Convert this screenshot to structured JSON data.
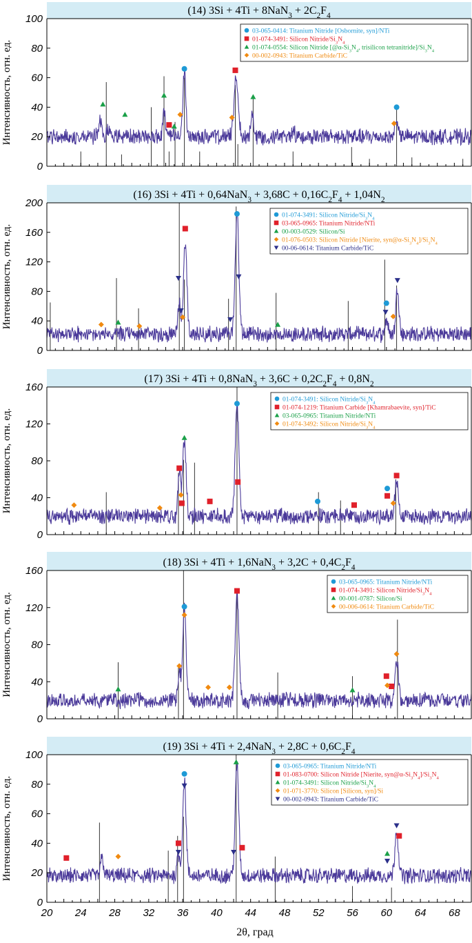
{
  "figure": {
    "xlabel": "2θ, град",
    "ylabel": "Интенсивность, отн. ед.",
    "xticks": [
      20,
      24,
      28,
      32,
      36,
      40,
      44,
      48,
      52,
      56,
      60,
      64,
      68
    ],
    "xlim": [
      20,
      70
    ],
    "line_color": "#4b3a9a",
    "title_bg": "#d4ecf5"
  },
  "chart_data": [
    {
      "type": "line",
      "title": "(14) 3Si + 4Ti + 8NaN3 + 2C2F4",
      "ylim": [
        0,
        100
      ],
      "yticks": [
        0,
        20,
        40,
        60,
        80,
        100
      ],
      "baseline": 20,
      "peaks": [
        [
          26.3,
          10,
          0.25
        ],
        [
          27.2,
          6,
          0.25
        ],
        [
          33.8,
          18,
          0.2
        ],
        [
          36.2,
          44,
          0.25
        ],
        [
          42.3,
          40,
          0.35
        ],
        [
          44.2,
          14,
          0.25
        ],
        [
          49.0,
          5,
          0.25
        ],
        [
          61.2,
          12,
          0.25
        ]
      ],
      "legend": [
        {
          "marker": "circle",
          "color": "#1e9ad6",
          "text": "03-065-0414: Titanium Nitride [Osbornite, syn]/NTi"
        },
        {
          "marker": "square",
          "color": "#e0202a",
          "text": "01-074-3491: Silicon Nitride/Si3N4"
        },
        {
          "marker": "triangle",
          "color": "#1aa048",
          "text": "01-074-0554: Silicon Nitride [@α-Si3N4, trisilicon tetranitride]/Si3N4"
        },
        {
          "marker": "diamond",
          "color": "#f08a10",
          "text": "00-002-0943: Titanium Carbide/TiC"
        }
      ],
      "markers": [
        {
          "s": 0,
          "x": 36.2,
          "y": 66
        },
        {
          "s": 0,
          "x": 61.2,
          "y": 40
        },
        {
          "s": 1,
          "x": 34.4,
          "y": 28
        },
        {
          "s": 1,
          "x": 42.2,
          "y": 65
        },
        {
          "s": 2,
          "x": 26.6,
          "y": 42
        },
        {
          "s": 2,
          "x": 29.2,
          "y": 35
        },
        {
          "s": 2,
          "x": 33.8,
          "y": 48
        },
        {
          "s": 2,
          "x": 35.0,
          "y": 27
        },
        {
          "s": 2,
          "x": 44.3,
          "y": 47
        },
        {
          "s": 3,
          "x": 35.7,
          "y": 35
        },
        {
          "s": 3,
          "x": 41.8,
          "y": 33
        },
        {
          "s": 3,
          "x": 60.9,
          "y": 29
        }
      ],
      "sticks": [
        [
          24,
          10
        ],
        [
          27.0,
          57
        ],
        [
          28.8,
          8
        ],
        [
          32.3,
          40
        ],
        [
          33.8,
          61
        ],
        [
          34.4,
          10
        ],
        [
          35.1,
          30
        ],
        [
          36.2,
          60
        ],
        [
          38.0,
          10
        ],
        [
          42.2,
          55
        ],
        [
          42.5,
          15
        ],
        [
          44.3,
          48
        ],
        [
          49.0,
          10
        ],
        [
          55.9,
          13
        ],
        [
          58.0,
          5
        ],
        [
          61.2,
          40
        ],
        [
          63.0,
          6
        ],
        [
          69.0,
          5
        ]
      ]
    },
    {
      "type": "line",
      "title": "(16) 3Si + 4Ti + 0,64NaN3 + 3,68C + 0,16C2F4 + 1,04N2",
      "ylim": [
        0,
        200
      ],
      "yticks": [
        0,
        40,
        80,
        120,
        160,
        200
      ],
      "baseline": 22,
      "peaks": [
        [
          35.6,
          45,
          0.22
        ],
        [
          36.3,
          125,
          0.28
        ],
        [
          42.4,
          165,
          0.3
        ],
        [
          60.0,
          20,
          0.25
        ],
        [
          61.3,
          65,
          0.25
        ]
      ],
      "legend": [
        {
          "marker": "circle",
          "color": "#1e9ad6",
          "text": "01-074-3491: Silicon Nitride/Si3N4"
        },
        {
          "marker": "square",
          "color": "#e0202a",
          "text": "03-065-0965: Titanium Nitride/NTi"
        },
        {
          "marker": "triangle",
          "color": "#1aa048",
          "text": "00-003-0529: Silicon/Si"
        },
        {
          "marker": "diamond",
          "color": "#f08a10",
          "text": "01-076-0503: Silicon Nitride [Nierite, syn@α-Si3N4]/Si3N4"
        },
        {
          "marker": "tri-down",
          "color": "#2b2f8a",
          "text": "00-06-0614: Titanium Carbide/TiC"
        }
      ],
      "markers": [
        {
          "s": 0,
          "x": 42.4,
          "y": 185
        },
        {
          "s": 0,
          "x": 60.0,
          "y": 64
        },
        {
          "s": 1,
          "x": 36.3,
          "y": 165
        },
        {
          "s": 2,
          "x": 28.4,
          "y": 38
        },
        {
          "s": 2,
          "x": 47.2,
          "y": 35
        },
        {
          "s": 3,
          "x": 26.4,
          "y": 35
        },
        {
          "s": 3,
          "x": 30.9,
          "y": 33
        },
        {
          "s": 3,
          "x": 36.0,
          "y": 45
        },
        {
          "s": 3,
          "x": 60.8,
          "y": 46
        },
        {
          "s": 4,
          "x": 35.5,
          "y": 98
        },
        {
          "s": 4,
          "x": 35.8,
          "y": 54
        },
        {
          "s": 4,
          "x": 41.6,
          "y": 42
        },
        {
          "s": 4,
          "x": 42.6,
          "y": 100
        },
        {
          "s": 4,
          "x": 59.9,
          "y": 52
        },
        {
          "s": 4,
          "x": 61.3,
          "y": 95
        }
      ],
      "sticks": [
        [
          20.4,
          65
        ],
        [
          28.2,
          98
        ],
        [
          30.8,
          57
        ],
        [
          35.6,
          200
        ],
        [
          36.2,
          96
        ],
        [
          41.4,
          70
        ],
        [
          42.3,
          195
        ],
        [
          47.0,
          78
        ],
        [
          55.5,
          67
        ],
        [
          59.8,
          123
        ],
        [
          61.2,
          88
        ]
      ]
    },
    {
      "type": "line",
      "title": "(17) 3Si + 4Ti + 0,8NaN3 + 3,6C + 0,2C2F4 + 0,8N2",
      "ylim": [
        0,
        160
      ],
      "yticks": [
        0,
        40,
        80,
        120,
        160
      ],
      "baseline": 20,
      "peaks": [
        [
          35.6,
          50,
          0.22
        ],
        [
          36.2,
          82,
          0.28
        ],
        [
          42.4,
          120,
          0.3
        ],
        [
          61.2,
          40,
          0.28
        ]
      ],
      "legend": [
        {
          "marker": "circle",
          "color": "#1e9ad6",
          "text": "01-074-3491: Silicon Nitride/Si3N4"
        },
        {
          "marker": "square",
          "color": "#e0202a",
          "text": "01-074-1219: Titanium Carbide [Khamrabaevite, syn]/TiC"
        },
        {
          "marker": "triangle",
          "color": "#1aa048",
          "text": "03-065-0965: Titanium Nitride/NTi"
        },
        {
          "marker": "diamond",
          "color": "#f08a10",
          "text": "01-074-3492: Silicon Nitride/Si3N4"
        }
      ],
      "markers": [
        {
          "s": 0,
          "x": 42.4,
          "y": 142
        },
        {
          "s": 0,
          "x": 51.9,
          "y": 36
        },
        {
          "s": 0,
          "x": 60.1,
          "y": 50
        },
        {
          "s": 1,
          "x": 35.6,
          "y": 72
        },
        {
          "s": 1,
          "x": 35.9,
          "y": 34
        },
        {
          "s": 1,
          "x": 39.2,
          "y": 36
        },
        {
          "s": 1,
          "x": 42.5,
          "y": 57
        },
        {
          "s": 1,
          "x": 56.2,
          "y": 32
        },
        {
          "s": 1,
          "x": 60.1,
          "y": 42
        },
        {
          "s": 1,
          "x": 61.2,
          "y": 64
        },
        {
          "s": 2,
          "x": 36.2,
          "y": 105
        },
        {
          "s": 3,
          "x": 23.2,
          "y": 32
        },
        {
          "s": 3,
          "x": 33.3,
          "y": 29
        },
        {
          "s": 3,
          "x": 35.8,
          "y": 43
        },
        {
          "s": 3,
          "x": 60.8,
          "y": 34
        }
      ],
      "sticks": [
        [
          27.0,
          46
        ],
        [
          35.5,
          67
        ],
        [
          36.1,
          81
        ],
        [
          37.4,
          78
        ],
        [
          42.4,
          160
        ],
        [
          52.0,
          46
        ],
        [
          54.6,
          37
        ],
        [
          61.1,
          60
        ]
      ]
    },
    {
      "type": "line",
      "title": "(18) 3Si + 4Ti + 1,6NaN3 + 3,2C + 0,4C2F4",
      "ylim": [
        0,
        160
      ],
      "yticks": [
        0,
        40,
        80,
        120,
        160
      ],
      "baseline": 20,
      "peaks": [
        [
          35.6,
          30,
          0.22
        ],
        [
          36.2,
          100,
          0.28
        ],
        [
          42.4,
          115,
          0.3
        ],
        [
          61.2,
          45,
          0.28
        ]
      ],
      "legend": [
        {
          "marker": "circle",
          "color": "#1e9ad6",
          "text": "03-065-0965: Titanium Nitride/NTi"
        },
        {
          "marker": "square",
          "color": "#e0202a",
          "text": "01-074-3491: Silicon Nitride/Si3N4"
        },
        {
          "marker": "triangle",
          "color": "#1aa048",
          "text": "00-001-0787: Silicon/Si"
        },
        {
          "marker": "diamond",
          "color": "#f08a10",
          "text": "00-006-0614: Titanium Carbide/TiC"
        }
      ],
      "markers": [
        {
          "s": 0,
          "x": 36.2,
          "y": 121
        },
        {
          "s": 1,
          "x": 42.4,
          "y": 138
        },
        {
          "s": 1,
          "x": 60.0,
          "y": 46
        },
        {
          "s": 1,
          "x": 60.6,
          "y": 35
        },
        {
          "s": 2,
          "x": 28.4,
          "y": 32
        },
        {
          "s": 2,
          "x": 56.0,
          "y": 31
        },
        {
          "s": 3,
          "x": 35.6,
          "y": 57
        },
        {
          "s": 3,
          "x": 36.2,
          "y": 112
        },
        {
          "s": 3,
          "x": 39.0,
          "y": 34
        },
        {
          "s": 3,
          "x": 41.5,
          "y": 34
        },
        {
          "s": 3,
          "x": 60.1,
          "y": 36
        },
        {
          "s": 3,
          "x": 61.2,
          "y": 70
        }
      ],
      "sticks": [
        [
          28.4,
          61
        ],
        [
          35.5,
          58
        ],
        [
          36.1,
          160
        ],
        [
          42.4,
          136
        ],
        [
          47.2,
          50
        ],
        [
          56.0,
          46
        ],
        [
          61.3,
          107
        ]
      ]
    },
    {
      "type": "line",
      "title": "(19) 3Si + 4Ti + 2,4NaN3 + 2,8C + 0,6C2F4",
      "ylim": [
        0,
        100
      ],
      "yticks": [
        0,
        20,
        40,
        60,
        80,
        100
      ],
      "baseline": 18,
      "peaks": [
        [
          26.5,
          12,
          0.25
        ],
        [
          35.5,
          15,
          0.22
        ],
        [
          36.2,
          65,
          0.28
        ],
        [
          42.4,
          75,
          0.3
        ],
        [
          61.2,
          32,
          0.28
        ]
      ],
      "legend": [
        {
          "marker": "circle",
          "color": "#1e9ad6",
          "text": "03-065-0965: Titanium Nitride/NTi"
        },
        {
          "marker": "square",
          "color": "#e0202a",
          "text": "01-083-0700: Silicon Nitride [Nierite, syn@α-Si3N4]/Si3N4"
        },
        {
          "marker": "triangle",
          "color": "#1aa048",
          "text": "01-074-3491: Silicon Nitride/Si3N4"
        },
        {
          "marker": "diamond",
          "color": "#f08a10",
          "text": "01-071-3770: Silicon [Silicon, syn]/Si"
        },
        {
          "marker": "tri-down",
          "color": "#2b2f8a",
          "text": "00-002-0943: Titanium Carbide/TiC"
        }
      ],
      "markers": [
        {
          "s": 0,
          "x": 36.2,
          "y": 87
        },
        {
          "s": 1,
          "x": 22.3,
          "y": 30
        },
        {
          "s": 1,
          "x": 35.5,
          "y": 40
        },
        {
          "s": 1,
          "x": 43.0,
          "y": 37
        },
        {
          "s": 1,
          "x": 61.5,
          "y": 45
        },
        {
          "s": 2,
          "x": 42.3,
          "y": 95
        },
        {
          "s": 2,
          "x": 60.1,
          "y": 33
        },
        {
          "s": 3,
          "x": 28.4,
          "y": 31
        },
        {
          "s": 4,
          "x": 35.5,
          "y": 34
        },
        {
          "s": 4,
          "x": 36.2,
          "y": 79
        },
        {
          "s": 4,
          "x": 42.0,
          "y": 34
        },
        {
          "s": 4,
          "x": 60.1,
          "y": 28
        },
        {
          "s": 4,
          "x": 61.2,
          "y": 52
        }
      ],
      "sticks": [
        [
          26.2,
          54
        ],
        [
          34.3,
          35
        ],
        [
          35.4,
          45
        ],
        [
          36.1,
          58
        ],
        [
          42.3,
          100
        ],
        [
          46.9,
          31
        ],
        [
          56.0,
          11
        ],
        [
          60.6,
          10
        ]
      ]
    }
  ]
}
